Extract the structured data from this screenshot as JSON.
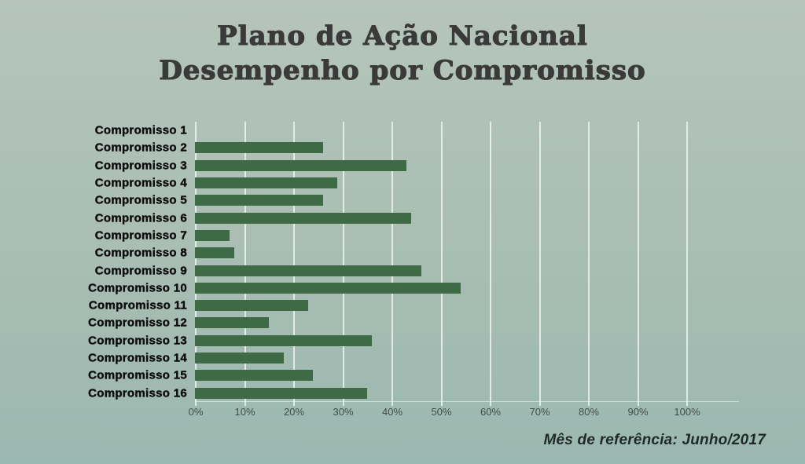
{
  "title": {
    "line1": "Plano de Ação Nacional",
    "line2": "Desempenho por Compromisso"
  },
  "footer": {
    "note": "Mês de referência: Junho/2017"
  },
  "colors": {
    "bar": "#3e6b46",
    "background_top": "#b5c5bc",
    "background_bottom": "#9bb8b0",
    "gridline": "rgba(250,252,250,0.72)",
    "title_text": "#3a3a3a",
    "category_text": "#0c0c0c",
    "tick_text": "#3f4e4a",
    "footer_text": "#1e2a27"
  },
  "chart_data": {
    "type": "bar",
    "orientation": "horizontal",
    "title": "Plano de Ação Nacional — Desempenho por Compromisso",
    "xlabel": "",
    "ylabel": "",
    "xlim": [
      0,
      100
    ],
    "grid": true,
    "unit": "%",
    "categories": [
      "Compromisso 1",
      "Compromisso 2",
      "Compromisso 3",
      "Compromisso 4",
      "Compromisso 5",
      "Compromisso 6",
      "Compromisso 7",
      "Compromisso 8",
      "Compromisso 9",
      "Compromisso 10",
      "Compromisso 11",
      "Compromisso 12",
      "Compromisso 13",
      "Compromisso 14",
      "Compromisso 15",
      "Compromisso 16"
    ],
    "values": [
      0,
      26,
      43,
      29,
      26,
      44,
      7,
      8,
      46,
      54,
      23,
      15,
      36,
      18,
      24,
      35
    ],
    "x_ticks": [
      "0%",
      "10%",
      "20%",
      "30%",
      "40%",
      "50%",
      "60%",
      "70%",
      "80%",
      "90%",
      "100%"
    ],
    "annotation": "Mês de referência: Junho/2017"
  }
}
